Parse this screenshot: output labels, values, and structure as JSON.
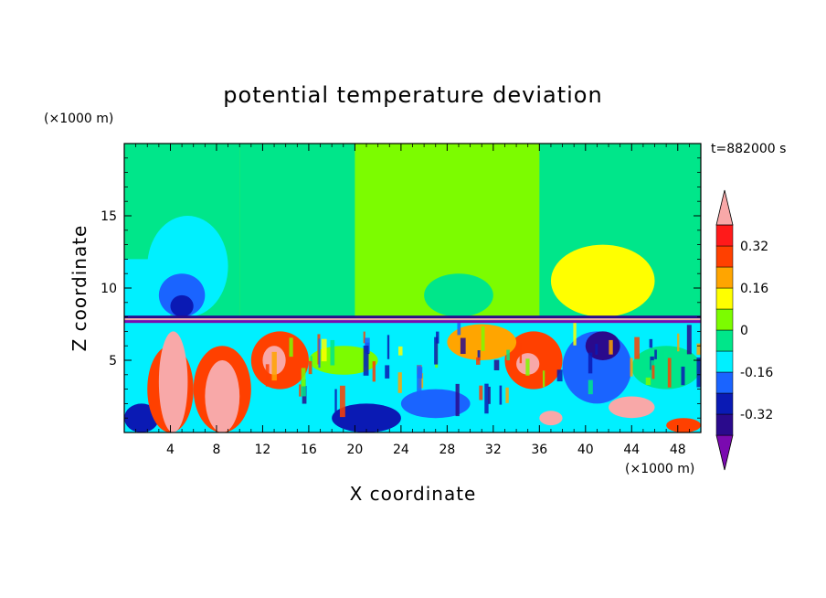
{
  "chart_data": {
    "type": "heatmap",
    "title": "potential temperature deviation",
    "xlabel": "X coordinate",
    "ylabel": "Z coordinate",
    "x_unit": "(×1000 m)",
    "y_unit": "(×1000 m)",
    "time_label": "t=882000 s",
    "xlim": [
      0,
      50
    ],
    "ylim": [
      0,
      20
    ],
    "x_ticks": [
      4,
      8,
      12,
      16,
      20,
      24,
      28,
      32,
      36,
      40,
      44,
      48
    ],
    "y_ticks": [
      5,
      10,
      15
    ],
    "colorbar": {
      "levels": [
        -0.4,
        -0.32,
        -0.24,
        -0.16,
        -0.08,
        0,
        0.08,
        0.16,
        0.24,
        0.32,
        0.4
      ],
      "colors": [
        "#7a0ab0",
        "#2a0a8c",
        "#0a1ab4",
        "#1a64ff",
        "#00f0ff",
        "#00e68a",
        "#7cfc00",
        "#ffff00",
        "#ffa500",
        "#ff4000",
        "#ff1a1a",
        "#f8a8a8"
      ],
      "labels": [
        "0.32",
        "0.16",
        "0",
        "-0.16",
        "-0.32"
      ],
      "label_values": [
        0.32,
        0.16,
        0,
        -0.16,
        -0.32
      ]
    },
    "base_upper_color": "#7cfc00",
    "base_lower_color": "#00f0ff",
    "inversion_height": 7.9,
    "regions": [
      {
        "x": [
          0,
          10
        ],
        "y": [
          8,
          20
        ],
        "c": "#00e68a"
      },
      {
        "x": [
          0,
          4
        ],
        "y": [
          8,
          12
        ],
        "c": "#00f0ff"
      },
      {
        "x": [
          2,
          9
        ],
        "y": [
          8,
          15
        ],
        "c": "#00f0ff",
        "shape": "ellipse"
      },
      {
        "x": [
          3,
          7
        ],
        "y": [
          8,
          11
        ],
        "c": "#1a64ff",
        "shape": "ellipse"
      },
      {
        "x": [
          4,
          6
        ],
        "y": [
          8,
          9.5
        ],
        "c": "#0a1ab4",
        "shape": "ellipse"
      },
      {
        "x": [
          10,
          20
        ],
        "y": [
          8,
          20
        ],
        "c": "#00e68a"
      },
      {
        "x": [
          36,
          50
        ],
        "y": [
          8,
          20
        ],
        "c": "#00e68a"
      },
      {
        "x": [
          37,
          46
        ],
        "y": [
          8,
          13
        ],
        "c": "#ffff00",
        "shape": "ellipse"
      },
      {
        "x": [
          26,
          32
        ],
        "y": [
          8,
          11
        ],
        "c": "#00e68a",
        "shape": "ellipse"
      },
      {
        "x": [
          38,
          44
        ],
        "y": [
          2,
          7
        ],
        "c": "#1a64ff",
        "shape": "ellipse"
      },
      {
        "x": [
          0,
          3
        ],
        "y": [
          0,
          2
        ],
        "c": "#0a1ab4",
        "shape": "ellipse"
      },
      {
        "x": [
          2,
          6
        ],
        "y": [
          0,
          6
        ],
        "c": "#ff4000",
        "shape": "ellipse"
      },
      {
        "x": [
          3,
          5.5
        ],
        "y": [
          0,
          7
        ],
        "c": "#f8a8a8",
        "shape": "ellipse"
      },
      {
        "x": [
          6,
          11
        ],
        "y": [
          0,
          6
        ],
        "c": "#ff4000",
        "shape": "ellipse"
      },
      {
        "x": [
          7,
          10
        ],
        "y": [
          0,
          5
        ],
        "c": "#f8a8a8",
        "shape": "ellipse"
      },
      {
        "x": [
          11,
          16
        ],
        "y": [
          3,
          7
        ],
        "c": "#ff4000",
        "shape": "ellipse"
      },
      {
        "x": [
          12,
          14
        ],
        "y": [
          4,
          6
        ],
        "c": "#f8a8a8",
        "shape": "ellipse"
      },
      {
        "x": [
          18,
          24
        ],
        "y": [
          0,
          2
        ],
        "c": "#0a1ab4",
        "shape": "ellipse"
      },
      {
        "x": [
          24,
          30
        ],
        "y": [
          1,
          3
        ],
        "c": "#1a64ff",
        "shape": "ellipse"
      },
      {
        "x": [
          33,
          38
        ],
        "y": [
          3,
          7
        ],
        "c": "#ff4000",
        "shape": "ellipse"
      },
      {
        "x": [
          34,
          36
        ],
        "y": [
          4,
          5.5
        ],
        "c": "#f8a8a8",
        "shape": "ellipse"
      },
      {
        "x": [
          36,
          38
        ],
        "y": [
          0.5,
          1.5
        ],
        "c": "#f8a8a8",
        "shape": "ellipse"
      },
      {
        "x": [
          42,
          46
        ],
        "y": [
          1,
          2.5
        ],
        "c": "#f8a8a8",
        "shape": "ellipse"
      },
      {
        "x": [
          40,
          43
        ],
        "y": [
          5,
          7
        ],
        "c": "#2a0a8c",
        "shape": "ellipse"
      },
      {
        "x": [
          28,
          34
        ],
        "y": [
          5,
          7.5
        ],
        "c": "#ffa500",
        "shape": "ellipse"
      },
      {
        "x": [
          16,
          22
        ],
        "y": [
          4,
          6
        ],
        "c": "#7cfc00",
        "shape": "ellipse"
      },
      {
        "x": [
          44,
          50
        ],
        "y": [
          3,
          6
        ],
        "c": "#00e68a",
        "shape": "ellipse"
      },
      {
        "x": [
          47,
          50
        ],
        "y": [
          0,
          1
        ],
        "c": "#ff4000",
        "shape": "ellipse"
      }
    ]
  }
}
